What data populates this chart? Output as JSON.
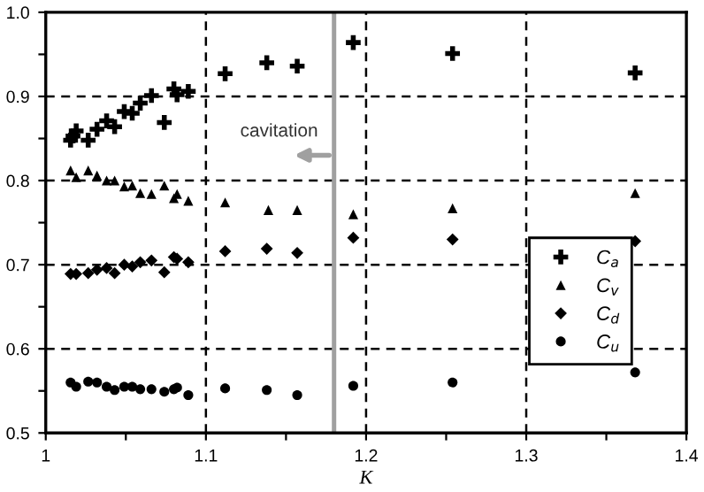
{
  "chart_data": {
    "type": "scatter",
    "xlabel": "K",
    "series": [
      {
        "name": "C$_{a}$",
        "color": "#000000",
        "marker": "cross",
        "x": [
          1.0155,
          1.017,
          1.019,
          1.0265,
          1.032,
          1.038,
          1.043,
          1.049,
          1.054,
          1.059,
          1.066,
          1.074,
          1.08,
          1.082,
          1.089,
          1.112,
          1.138,
          1.157,
          1.192,
          1.254,
          1.368
        ],
        "values": [
          0.848,
          0.853,
          0.859,
          0.848,
          0.861,
          0.871,
          0.864,
          0.882,
          0.88,
          0.892,
          0.901,
          0.869,
          0.909,
          0.902,
          0.906,
          0.927,
          0.94,
          0.936,
          0.964,
          0.951,
          0.928
        ]
      },
      {
        "name": "C$_{v}$",
        "color": "#000000",
        "marker": "triangle",
        "x": [
          1.0155,
          1.019,
          1.0265,
          1.032,
          1.038,
          1.043,
          1.049,
          1.054,
          1.059,
          1.066,
          1.074,
          1.08,
          1.082,
          1.089,
          1.112,
          1.139,
          1.157,
          1.192,
          1.254,
          1.368
        ],
        "values": [
          0.812,
          0.804,
          0.812,
          0.806,
          0.8,
          0.8,
          0.793,
          0.794,
          0.785,
          0.784,
          0.794,
          0.779,
          0.784,
          0.776,
          0.774,
          0.765,
          0.765,
          0.76,
          0.767,
          0.785
        ]
      },
      {
        "name": "C$_{d}$",
        "color": "#000000",
        "marker": "diamond",
        "x": [
          1.0155,
          1.019,
          1.0265,
          1.032,
          1.038,
          1.043,
          1.049,
          1.054,
          1.059,
          1.066,
          1.074,
          1.08,
          1.082,
          1.089,
          1.112,
          1.138,
          1.157,
          1.192,
          1.254,
          1.368
        ],
        "values": [
          0.689,
          0.689,
          0.69,
          0.694,
          0.696,
          0.69,
          0.7,
          0.698,
          0.703,
          0.705,
          0.691,
          0.709,
          0.707,
          0.703,
          0.716,
          0.719,
          0.714,
          0.732,
          0.73,
          0.728
        ]
      },
      {
        "name": "C$_{u}$",
        "color": "#000000",
        "marker": "circle",
        "x": [
          1.0155,
          1.019,
          1.0265,
          1.032,
          1.038,
          1.043,
          1.049,
          1.054,
          1.059,
          1.066,
          1.074,
          1.08,
          1.082,
          1.089,
          1.112,
          1.138,
          1.157,
          1.192,
          1.254,
          1.368
        ],
        "values": [
          0.56,
          0.555,
          0.561,
          0.56,
          0.555,
          0.551,
          0.555,
          0.555,
          0.552,
          0.552,
          0.549,
          0.552,
          0.554,
          0.545,
          0.553,
          0.551,
          0.545,
          0.556,
          0.56,
          0.572
        ]
      }
    ],
    "xlim": [
      1,
      1.4
    ],
    "ylim": [
      0.5,
      1.0
    ],
    "xticks": [
      1,
      {
        "value": 1.05,
        "label": null
      },
      1.1,
      {
        "value": 1.15,
        "label": null
      },
      1.2,
      {
        "value": 1.25,
        "label": null
      },
      1.3,
      {
        "value": 1.35,
        "label": null
      },
      1.4
    ],
    "yticks": [
      0.5,
      {
        "value": 0.55,
        "label": null
      },
      0.6,
      {
        "value": 0.65,
        "label": null
      },
      0.7,
      {
        "value": 0.75,
        "label": null
      },
      0.8,
      {
        "value": 0.85,
        "label": null
      },
      0.9,
      {
        "value": 0.95,
        "label": null
      },
      {
        "value": 1.0,
        "label": "1.0"
      }
    ],
    "ref_lines": [
      {
        "axis": "x",
        "value": 1.18,
        "label": "cavitation",
        "color": "#a0a0a0",
        "line_style": "solid"
      }
    ],
    "grid": true,
    "legend": "bottom right"
  }
}
